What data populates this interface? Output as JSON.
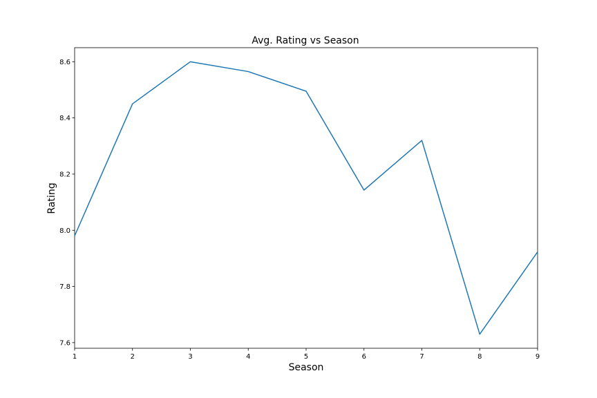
{
  "chart_data": {
    "type": "line",
    "title": "Avg. Rating vs Season",
    "xlabel": "Season",
    "ylabel": "Rating",
    "x": [
      1,
      2,
      3,
      4,
      5,
      6,
      7,
      8,
      9
    ],
    "series": [
      {
        "values": [
          7.98,
          8.45,
          8.6,
          8.565,
          8.495,
          8.143,
          8.32,
          7.63,
          7.923
        ],
        "color": "#1f77b4"
      }
    ],
    "xlim": [
      1,
      9
    ],
    "ylim": [
      7.58,
      8.65
    ],
    "xticks": [
      "1",
      "2",
      "3",
      "4",
      "5",
      "6",
      "7",
      "8",
      "9"
    ],
    "yticks": [
      "7.6",
      "7.8",
      "8.0",
      "8.2",
      "8.4",
      "8.6"
    ],
    "grid": false,
    "legend": "none"
  }
}
